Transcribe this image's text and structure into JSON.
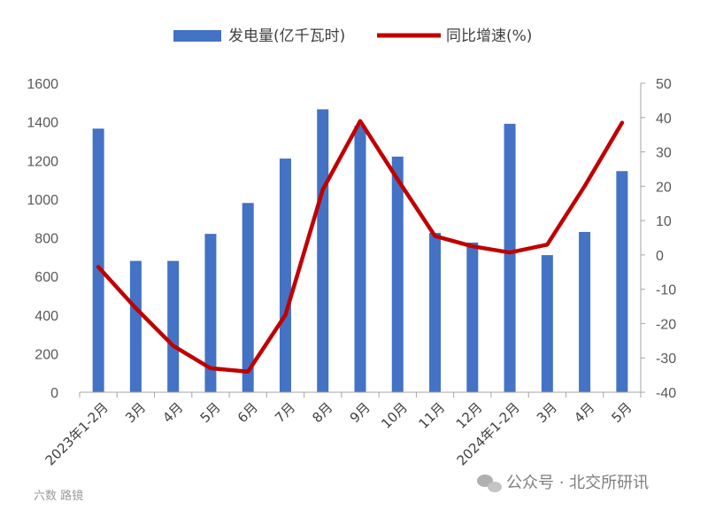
{
  "chart_data": {
    "type": "bar+line",
    "categories": [
      "2023年1-2月",
      "3月",
      "4月",
      "5月",
      "6月",
      "7月",
      "8月",
      "9月",
      "10月",
      "11月",
      "12月",
      "2024年1-2月",
      "3月",
      "4月",
      "5月"
    ],
    "series": [
      {
        "name": "发电量(亿千瓦时)",
        "type": "bar",
        "axis": "left",
        "color": "#4472C4",
        "values": [
          1365,
          680,
          680,
          820,
          980,
          1210,
          1465,
          1380,
          1220,
          825,
          775,
          1390,
          710,
          830,
          1145
        ]
      },
      {
        "name": "同比增速(%)",
        "type": "line",
        "axis": "right",
        "color": "#C00000",
        "values": [
          -3.5,
          -15.5,
          -26.5,
          -33,
          -34,
          -17.5,
          19,
          39,
          22,
          5.5,
          2.5,
          0.7,
          3,
          20,
          38.5
        ]
      }
    ],
    "y_left": {
      "min": 0,
      "max": 1600,
      "step": 200,
      "ticks": [
        "0",
        "200",
        "400",
        "600",
        "800",
        "1000",
        "1200",
        "1400",
        "1600"
      ]
    },
    "y_right": {
      "min": -40,
      "max": 50,
      "step": 10,
      "ticks": [
        "-40",
        "-30",
        "-20",
        "-10",
        "0",
        "10",
        "20",
        "30",
        "40",
        "50"
      ]
    },
    "legend": "top"
  },
  "watermark": {
    "right": "公众号 · 北交所研讯",
    "left": "六数 路镜"
  }
}
